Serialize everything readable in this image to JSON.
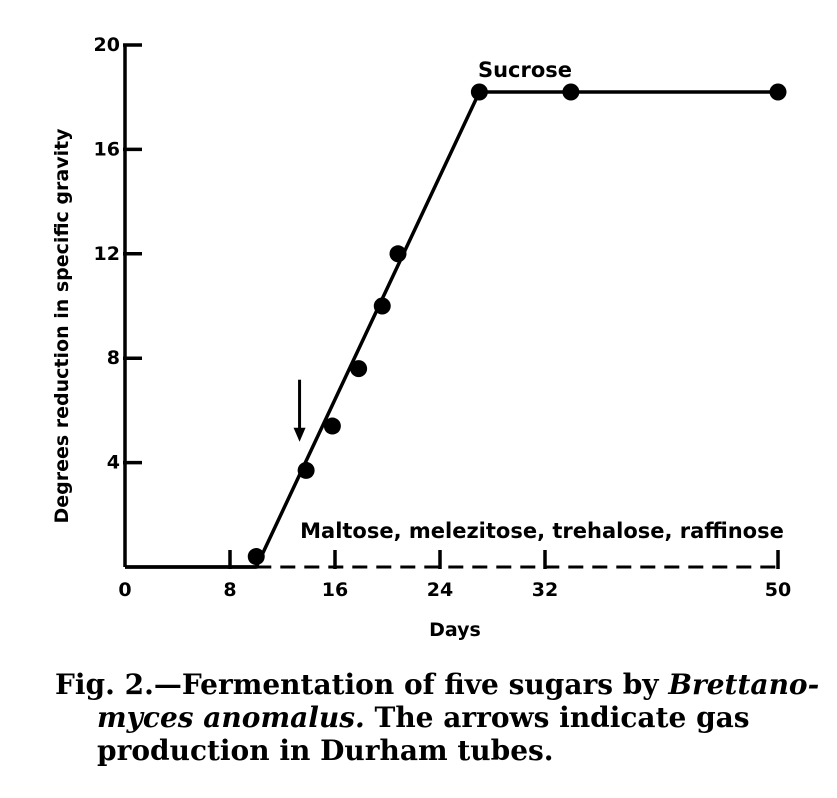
{
  "chart_data": {
    "type": "line",
    "xlabel": "Days",
    "ylabel": "Degrees reduction in specific gravity",
    "xlim": [
      0,
      50
    ],
    "ylim": [
      0,
      20
    ],
    "x_break": {
      "after": 32,
      "label_at_end": 50
    },
    "x_ticks": [
      {
        "value": 0,
        "label": "0"
      },
      {
        "value": 8,
        "label": "8"
      },
      {
        "value": 16,
        "label": "16"
      },
      {
        "value": 24,
        "label": "24"
      },
      {
        "value": 32,
        "label": "32"
      },
      {
        "value": 50,
        "label": "50"
      }
    ],
    "y_ticks": [
      {
        "value": 4,
        "label": "4"
      },
      {
        "value": 8,
        "label": "8"
      },
      {
        "value": 12,
        "label": "12"
      },
      {
        "value": 16,
        "label": "16"
      },
      {
        "value": 20,
        "label": "20"
      }
    ],
    "series": [
      {
        "name": "Sucrose",
        "style": "solid",
        "markers": true,
        "points": [
          {
            "x": 10,
            "y": 0.4
          },
          {
            "x": 13.8,
            "y": 3.7
          },
          {
            "x": 15.8,
            "y": 5.4
          },
          {
            "x": 17.8,
            "y": 7.6
          },
          {
            "x": 19.6,
            "y": 10.0
          },
          {
            "x": 20.8,
            "y": 12.0
          },
          {
            "x": 27,
            "y": 18.2
          },
          {
            "x": 34,
            "y": 18.2
          },
          {
            "x": 50,
            "y": 18.2
          }
        ],
        "line": [
          {
            "x": 0,
            "y": 0
          },
          {
            "x": 10,
            "y": 0
          },
          {
            "x": 27,
            "y": 18.2
          },
          {
            "x": 50,
            "y": 18.2
          }
        ]
      },
      {
        "name": "Maltose, melezitose, trehalose, raffinose",
        "style": "dashed",
        "markers": false,
        "line": [
          {
            "x": 10,
            "y": 0
          },
          {
            "x": 50,
            "y": 0
          }
        ]
      }
    ],
    "gas_arrows": [
      {
        "x": 13.3,
        "y": 4.8
      }
    ],
    "colors": {
      "ink": "#000000",
      "background": "#ffffff"
    }
  },
  "caption": {
    "line1_prefix": "Fig. 2.—Fermentation of five sugars by ",
    "line1_italic": "Brettano-",
    "line2_italic": "myces anomalus.",
    "line2_rest": "  The arrows indicate gas",
    "line3": "production in Durham tubes."
  }
}
